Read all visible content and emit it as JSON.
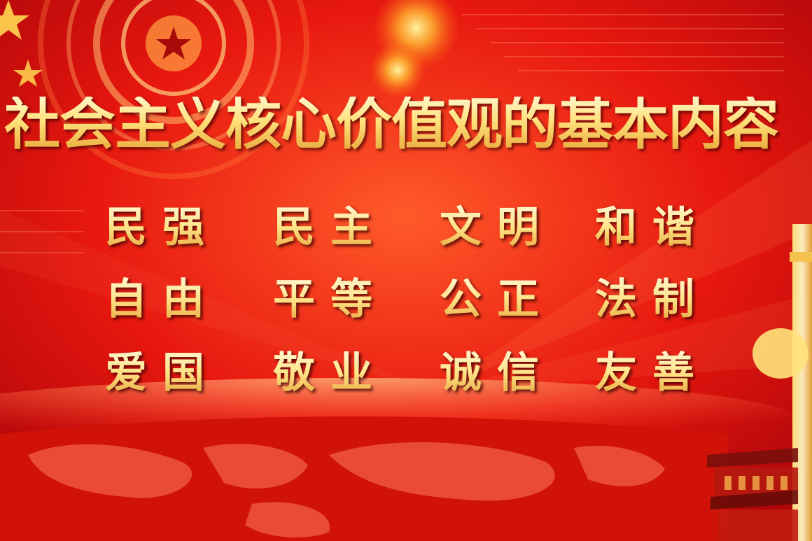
{
  "banner": {
    "title": "社会主义核心价值观的基本内容",
    "values": [
      "民强",
      "民主",
      "文明",
      "和谐",
      "自由",
      "平等",
      "公正",
      "法制",
      "爱国",
      "敬业",
      "诚信",
      "友善"
    ]
  },
  "colors": {
    "background": "#e1140f",
    "gold": "#ffe07a"
  }
}
